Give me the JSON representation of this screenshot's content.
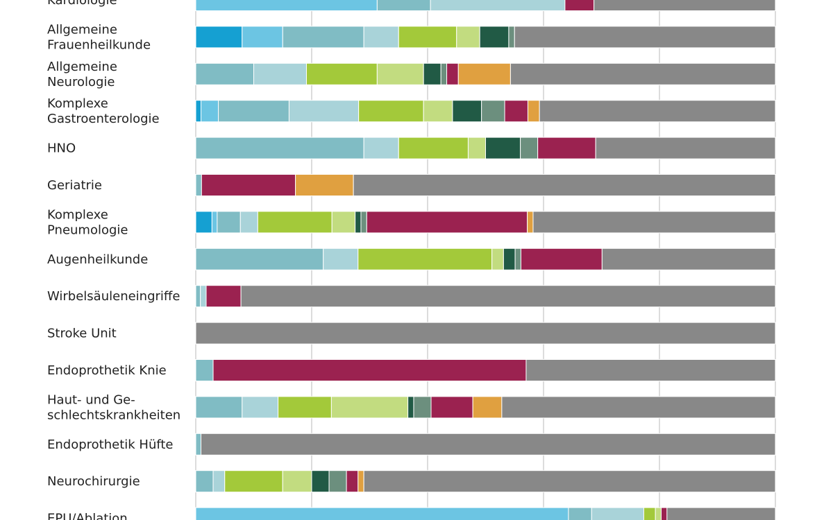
{
  "chart_data": {
    "type": "bar",
    "orientation": "horizontal",
    "stacked": true,
    "title": "",
    "xlabel": "",
    "ylabel": "",
    "xlim": [
      0,
      1
    ],
    "grid": true,
    "legend": "none",
    "colors": [
      "#15a0d2",
      "#6cc5e3",
      "#80bcc4",
      "#a9d3d9",
      "#a3c93a",
      "#c2dc80",
      "#215a45",
      "#6c8f7e",
      "#9b2250",
      "#e0a040",
      "#888888"
    ],
    "categories": [
      "Kardiologie",
      "Allgemeine Frauenheilkunde",
      "Allgemeine Neurologie",
      "Komplexe Gastroenterologie",
      "HNO",
      "Geriatrie",
      "Komplexe Pneumologie",
      "Augenheilkunde",
      "Wirbelsäuleneingriffe",
      "Stroke Unit",
      "Endoprothetik Knie",
      "Haut- und Geschlechtskrankheiten",
      "Endoprothetik Hüfte",
      "Neurochirurgie",
      "EPU/Ablation"
    ],
    "label_lines": [
      [
        "Kardiologie"
      ],
      [
        "Allgemeine",
        "Frauenheilkunde"
      ],
      [
        "Allgemeine",
        "Neurologie"
      ],
      [
        "Komplexe",
        "Gastroenterologie"
      ],
      [
        "HNO"
      ],
      [
        "Geriatrie"
      ],
      [
        "Komplexe",
        "Pneumologie"
      ],
      [
        "Augenheilkunde"
      ],
      [
        "Wirbelsäuleneingriffe"
      ],
      [
        "Stroke Unit"
      ],
      [
        "Endoprothetik Knie"
      ],
      [
        "Haut- und Ge-",
        "schlechtskrankheiten"
      ],
      [
        "Endoprothetik Hüfte"
      ],
      [
        "Neurochirurgie"
      ],
      [
        "EPU/Ablation"
      ]
    ],
    "series": [
      {
        "values": [
          0,
          0.08,
          0,
          0.009,
          0,
          0,
          0.028,
          0,
          0,
          0,
          0,
          0,
          0,
          0,
          0
        ]
      },
      {
        "values": [
          0.313,
          0.07,
          0,
          0.03,
          0,
          0,
          0.009,
          0,
          0,
          0,
          0,
          0,
          0,
          0,
          0.643
        ]
      },
      {
        "values": [
          0.092,
          0.14,
          0.1,
          0.122,
          0.29,
          0.01,
          0.04,
          0.22,
          0.008,
          0,
          0.03,
          0.08,
          0.009,
          0.03,
          0.04
        ]
      },
      {
        "values": [
          0.232,
          0.06,
          0.091,
          0.12,
          0.06,
          0,
          0.03,
          0.06,
          0.01,
          0,
          0,
          0.062,
          0,
          0.02,
          0.09
        ]
      },
      {
        "values": [
          0,
          0.1,
          0.122,
          0.112,
          0.12,
          0,
          0.128,
          0.231,
          0,
          0,
          0,
          0.092,
          0,
          0.1,
          0.02
        ]
      },
      {
        "values": [
          0,
          0.04,
          0.08,
          0.05,
          0.03,
          0,
          0.04,
          0.02,
          0,
          0,
          0,
          0.132,
          0,
          0.05,
          0.01
        ]
      },
      {
        "values": [
          0,
          0.05,
          0.03,
          0.05,
          0.06,
          0,
          0.01,
          0.02,
          0,
          0,
          0,
          0.01,
          0,
          0.03,
          0
        ]
      },
      {
        "values": [
          0,
          0.01,
          0.01,
          0.04,
          0.03,
          0,
          0.01,
          0.01,
          0,
          0,
          0,
          0.03,
          0,
          0.03,
          0
        ]
      },
      {
        "values": [
          0.05,
          0,
          0.02,
          0.04,
          0.1,
          0.162,
          0.277,
          0.14,
          0.06,
          0,
          0.54,
          0.072,
          0,
          0.02,
          0.01
        ]
      },
      {
        "values": [
          0,
          0,
          0.09,
          0.02,
          0,
          0.1,
          0.01,
          0,
          0,
          0,
          0,
          0.05,
          0,
          0.01,
          0
        ]
      },
      {
        "values": [
          0.313,
          0.45,
          0.457,
          0.407,
          0.31,
          0.728,
          0.418,
          0.299,
          0.922,
          1,
          0.43,
          0.472,
          0.991,
          0.71,
          0.187
        ]
      }
    ]
  }
}
